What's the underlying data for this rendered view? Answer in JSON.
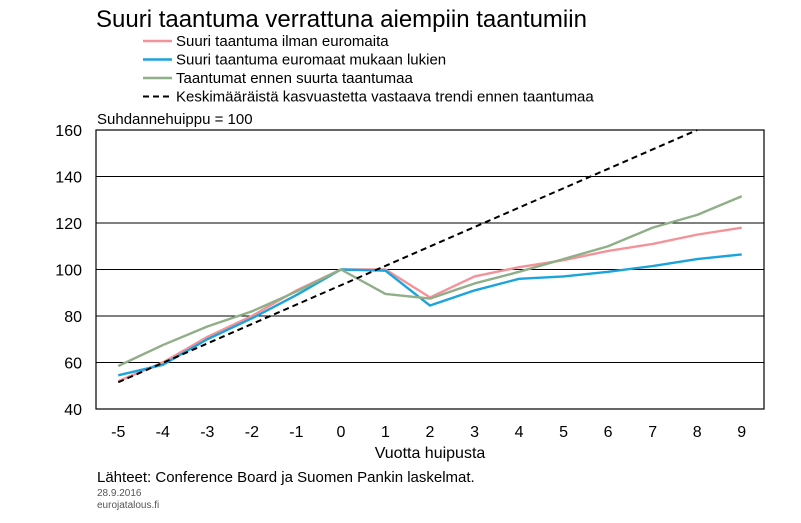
{
  "chart_data": {
    "type": "line",
    "title": "Suuri taantuma verrattuna aiempiin taantumiin",
    "unit_label": "Suhdannehuippu = 100",
    "xlabel": "Vuotta huipusta",
    "ylabel": "",
    "x": [
      -5,
      -4,
      -3,
      -2,
      -1,
      0,
      1,
      2,
      3,
      4,
      5,
      6,
      7,
      8,
      9
    ],
    "xlim": [
      -5.5,
      9.5
    ],
    "ylim": [
      40,
      160
    ],
    "yticks": [
      40,
      60,
      80,
      100,
      120,
      140,
      160
    ],
    "grid": true,
    "legend_position": "top",
    "series": [
      {
        "name": "Suuri taantuma ilman euromaita",
        "color": "#f4929a",
        "dash": "none",
        "values": [
          52,
          60,
          71,
          80,
          91,
          100,
          100,
          88,
          97,
          101,
          104,
          108,
          111,
          115,
          118
        ]
      },
      {
        "name": "Suuri taantuma euromaat mukaan lukien",
        "color": "#1ba3dc",
        "dash": "none",
        "values": [
          54.5,
          59,
          70,
          79,
          89,
          100,
          99.5,
          84.5,
          91,
          96,
          97,
          99,
          101.5,
          104.5,
          106.5
        ]
      },
      {
        "name": "Taantumat ennen suurta taantumaa",
        "color": "#8faf88",
        "dash": "none",
        "values": [
          58.5,
          67.5,
          75.5,
          82,
          90.5,
          100,
          89.5,
          87.5,
          94,
          99,
          104.5,
          110,
          118,
          123.5,
          131.5
        ]
      },
      {
        "name": "Keskimääräistä kasvuastetta vastaava trendi ennen taantumaa",
        "color": "#000000",
        "dash": "dashed",
        "x": [
          -5,
          8
        ],
        "values": [
          51.5,
          160
        ]
      }
    ]
  },
  "source": "Lähteet: Conference Board ja Suomen Pankin laskelmat.",
  "date": "28.9.2016",
  "site": "eurojatalous.fi"
}
